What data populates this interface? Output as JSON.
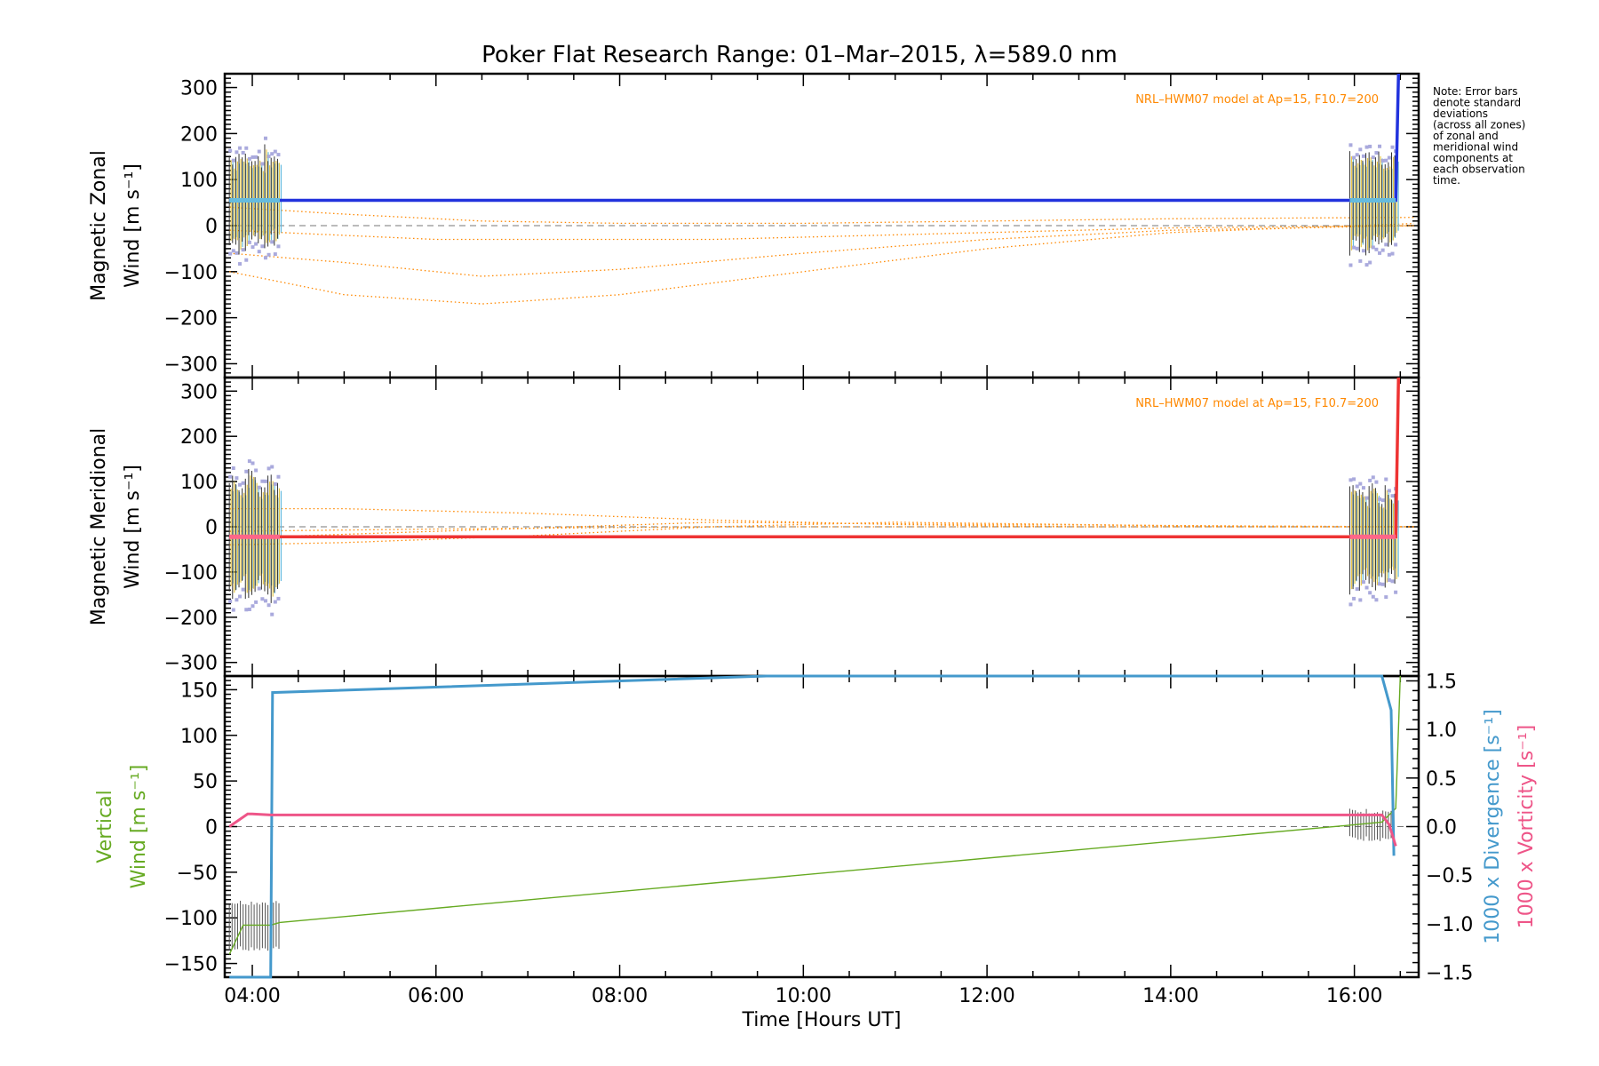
{
  "title": "Poker Flat Research Range: 01–Mar–2015, λ=589.0 nm",
  "note_lines": [
    "Note: Error bars",
    "denote standard",
    "deviations",
    "(across all zones)",
    "of zonal and",
    "meridional wind",
    "components at",
    "each observation",
    "time."
  ],
  "xlabel": "Time [Hours UT]",
  "x_ticks": [
    "04:00",
    "06:00",
    "08:00",
    "10:00",
    "12:00",
    "14:00",
    "16:00"
  ],
  "colors": {
    "zonal": "#2233dd",
    "meridional": "#ee3333",
    "model": "#ff8800",
    "vertical": "#66aa22",
    "divergence": "#4499cc",
    "vorticity": "#ee5588",
    "zone_points": "#66bbdd",
    "std_points": "#aaaadd"
  },
  "chart_data": [
    {
      "type": "line",
      "panel": "zonal",
      "ylabel_lines": [
        "Magnetic Zonal",
        "Wind [m s⁻¹]"
      ],
      "model_label": "NRL–HWM07 model at Ap=15, F10.7=200",
      "xlim": [
        3.7,
        16.7
      ],
      "ylim": [
        -330,
        330
      ],
      "y_ticks": [
        300,
        200,
        100,
        0,
        -100,
        -200,
        -300
      ],
      "series": [
        {
          "name": "",
          "x": [
            3.75,
            4.2,
            16.4,
            16.45,
            16.48
          ],
          "y": [
            55,
            55,
            55,
            55,
            330
          ]
        }
      ],
      "cluster_start": {
        "x_range": [
          3.75,
          4.3
        ],
        "center": 55,
        "spread": 95
      },
      "cluster_end": {
        "x_range": [
          15.95,
          16.45
        ],
        "center": 55,
        "spread": 95
      },
      "model_curves": [
        {
          "x": [
            3.75,
            5,
            6.5,
            8,
            10,
            12,
            14,
            16.7
          ],
          "y": [
            -60,
            -80,
            -110,
            -95,
            -60,
            -30,
            -10,
            0
          ]
        },
        {
          "x": [
            3.75,
            5,
            6.5,
            8,
            10,
            12,
            14,
            16.7
          ],
          "y": [
            -100,
            -150,
            -170,
            -150,
            -100,
            -50,
            -15,
            5
          ]
        },
        {
          "x": [
            3.75,
            5,
            6.5,
            8,
            10,
            12,
            14,
            16.7
          ],
          "y": [
            40,
            25,
            10,
            5,
            5,
            10,
            15,
            18
          ]
        },
        {
          "x": [
            3.75,
            6,
            9,
            12,
            14,
            16.7
          ],
          "y": [
            -10,
            -30,
            -30,
            -15,
            -5,
            0
          ]
        }
      ]
    },
    {
      "type": "line",
      "panel": "meridional",
      "ylabel_lines": [
        "Magnetic Meridional",
        "Wind [m s⁻¹]"
      ],
      "model_label": "NRL–HWM07 model at Ap=15, F10.7=200",
      "xlim": [
        3.7,
        16.7
      ],
      "ylim": [
        -330,
        330
      ],
      "y_ticks": [
        300,
        200,
        100,
        0,
        -100,
        -200,
        -300
      ],
      "series": [
        {
          "name": "",
          "x": [
            3.75,
            4.2,
            16.4,
            16.45,
            16.48
          ],
          "y": [
            -22,
            -22,
            -22,
            -22,
            330
          ]
        }
      ],
      "cluster_start": {
        "x_range": [
          3.75,
          4.3
        ],
        "center": -22,
        "spread": 120
      },
      "cluster_end": {
        "x_range": [
          15.95,
          16.45
        ],
        "center": -22,
        "spread": 100
      },
      "model_curves": [
        {
          "x": [
            3.75,
            5,
            7,
            9,
            11,
            13,
            15,
            16.7
          ],
          "y": [
            40,
            40,
            30,
            15,
            5,
            0,
            0,
            0
          ]
        },
        {
          "x": [
            3.75,
            5,
            7,
            9,
            11,
            13,
            15,
            16.7
          ],
          "y": [
            -40,
            -35,
            -20,
            0,
            10,
            5,
            0,
            0
          ]
        },
        {
          "x": [
            3.75,
            6,
            9,
            12,
            16.7
          ],
          "y": [
            -25,
            -10,
            10,
            5,
            0
          ]
        },
        {
          "x": [
            3.75,
            6,
            9,
            12,
            16.7
          ],
          "y": [
            -10,
            -5,
            0,
            0,
            0
          ]
        }
      ]
    },
    {
      "type": "line",
      "panel": "vertical",
      "ylabel_lines": [
        "Vertical",
        "Wind [m s⁻¹]"
      ],
      "ylabel_right_lines": [
        "1000 x Divergence [s⁻¹]",
        "1000 x Vorticity [s⁻¹]"
      ],
      "xlim": [
        3.7,
        16.7
      ],
      "ylim": [
        -165,
        165
      ],
      "y_ticks": [
        150,
        100,
        50,
        0,
        -50,
        -100,
        -150
      ],
      "y2lim": [
        -1.55,
        1.55
      ],
      "y2_ticks": [
        1.5,
        1.0,
        0.5,
        0.0,
        -0.5,
        -1.0,
        -1.5
      ],
      "series": [
        {
          "name": "",
          "axis": "left",
          "x": [
            3.75,
            3.9,
            4.2,
            4.3,
            16.0,
            16.3,
            16.45,
            16.5
          ],
          "y": [
            -140,
            -108,
            -108,
            -105,
            2,
            5,
            20,
            165
          ]
        },
        {
          "name": "",
          "axis": "right",
          "x": [
            3.75,
            4.2,
            4.22,
            9.6,
            16.3,
            16.4,
            16.43
          ],
          "y": [
            -1.55,
            -1.55,
            1.38,
            1.55,
            1.55,
            1.2,
            -0.3
          ]
        },
        {
          "name": "",
          "axis": "right",
          "x": [
            3.75,
            3.95,
            4.0,
            4.2,
            16.3,
            16.38,
            16.45
          ],
          "y": [
            0.0,
            0.13,
            0.13,
            0.12,
            0.12,
            0.02,
            -0.2
          ]
        }
      ]
    }
  ]
}
